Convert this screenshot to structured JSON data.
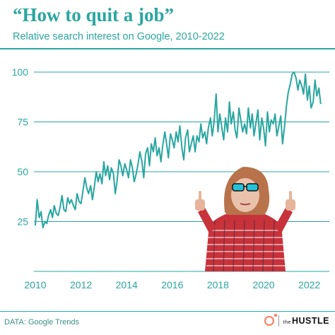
{
  "header": {
    "title": "“How to quit a job”",
    "subtitle": "Relative search interest on Google, 2010-2022"
  },
  "footer": {
    "source": "DATA: Google Trends",
    "brand_prefix": "the",
    "brand_name": "HUSTLE"
  },
  "colors": {
    "accent": "#2aa6a0",
    "line": "#2aa6a0",
    "logo": "#ff7a59"
  },
  "chart_data": {
    "type": "line",
    "title": "“How to quit a job”",
    "subtitle": "Relative search interest on Google, 2010-2022",
    "xlabel": "",
    "ylabel": "",
    "xlim": [
      2010,
      2022.6
    ],
    "ylim": [
      0,
      100
    ],
    "x_ticks": [
      2010,
      2012,
      2014,
      2016,
      2018,
      2020,
      2022
    ],
    "x_tick_labels": [
      "2010",
      "2012",
      "2014",
      "2016",
      "2018",
      "2020",
      "2022"
    ],
    "y_ticks": [
      25,
      50,
      75,
      100
    ],
    "y_tick_labels": [
      "25",
      "50",
      "75",
      "100"
    ],
    "grid": "horizontal",
    "series": [
      {
        "x": [
          2010.0,
          2010.08,
          2010.17,
          2010.25,
          2010.33,
          2010.42,
          2010.5,
          2010.58,
          2010.67,
          2010.75,
          2010.83,
          2010.92,
          2011.0,
          2011.08,
          2011.17,
          2011.25,
          2011.33,
          2011.42,
          2011.5,
          2011.58,
          2011.67,
          2011.75,
          2011.83,
          2011.92,
          2012.0,
          2012.08,
          2012.17,
          2012.25,
          2012.33,
          2012.42,
          2012.5,
          2012.58,
          2012.67,
          2012.75,
          2012.83,
          2012.92,
          2013.0,
          2013.08,
          2013.17,
          2013.25,
          2013.33,
          2013.42,
          2013.5,
          2013.58,
          2013.67,
          2013.75,
          2013.83,
          2013.92,
          2014.0,
          2014.08,
          2014.17,
          2014.25,
          2014.33,
          2014.42,
          2014.5,
          2014.58,
          2014.67,
          2014.75,
          2014.83,
          2014.92,
          2015.0,
          2015.08,
          2015.17,
          2015.25,
          2015.33,
          2015.42,
          2015.5,
          2015.58,
          2015.67,
          2015.75,
          2015.83,
          2015.92,
          2016.0,
          2016.08,
          2016.17,
          2016.25,
          2016.33,
          2016.42,
          2016.5,
          2016.58,
          2016.67,
          2016.75,
          2016.83,
          2016.92,
          2017.0,
          2017.08,
          2017.17,
          2017.25,
          2017.33,
          2017.42,
          2017.5,
          2017.58,
          2017.67,
          2017.75,
          2017.83,
          2017.92,
          2018.0,
          2018.08,
          2018.17,
          2018.25,
          2018.33,
          2018.42,
          2018.5,
          2018.58,
          2018.67,
          2018.75,
          2018.83,
          2018.92,
          2019.0,
          2019.08,
          2019.17,
          2019.25,
          2019.33,
          2019.42,
          2019.5,
          2019.58,
          2019.67,
          2019.75,
          2019.83,
          2019.92,
          2020.0,
          2020.08,
          2020.17,
          2020.25,
          2020.33,
          2020.42,
          2020.5,
          2020.58,
          2020.67,
          2020.75,
          2020.83,
          2020.92,
          2021.0,
          2021.08,
          2021.17,
          2021.25,
          2021.33,
          2021.42,
          2021.5,
          2021.58,
          2021.67,
          2021.75,
          2021.83,
          2021.92,
          2022.0,
          2022.08,
          2022.17,
          2022.25,
          2022.33,
          2022.42,
          2022.5
        ],
        "y": [
          23,
          36,
          27,
          30,
          22,
          25,
          24,
          28,
          31,
          27,
          33,
          29,
          28,
          32,
          38,
          31,
          30,
          37,
          34,
          36,
          33,
          31,
          39,
          35,
          34,
          40,
          47,
          42,
          39,
          43,
          36,
          42,
          50,
          45,
          49,
          44,
          55,
          48,
          53,
          46,
          52,
          49,
          39,
          45,
          56,
          53,
          48,
          54,
          51,
          47,
          56,
          52,
          45,
          49,
          54,
          60,
          55,
          47,
          59,
          62,
          53,
          64,
          60,
          67,
          58,
          62,
          55,
          63,
          70,
          64,
          57,
          69,
          66,
          62,
          70,
          65,
          73,
          62,
          56,
          67,
          71,
          60,
          64,
          68,
          60,
          68,
          65,
          74,
          67,
          70,
          64,
          72,
          77,
          68,
          75,
          89,
          70,
          79,
          72,
          66,
          77,
          70,
          85,
          74,
          80,
          71,
          67,
          82,
          76,
          70,
          74,
          69,
          82,
          72,
          79,
          68,
          75,
          81,
          66,
          77,
          72,
          63,
          80,
          70,
          76,
          74,
          79,
          68,
          73,
          78,
          64,
          73,
          83,
          90,
          94,
          99,
          100,
          97,
          91,
          96,
          93,
          89,
          99,
          86,
          93,
          82,
          85,
          96,
          88,
          92,
          84
        ]
      }
    ]
  }
}
